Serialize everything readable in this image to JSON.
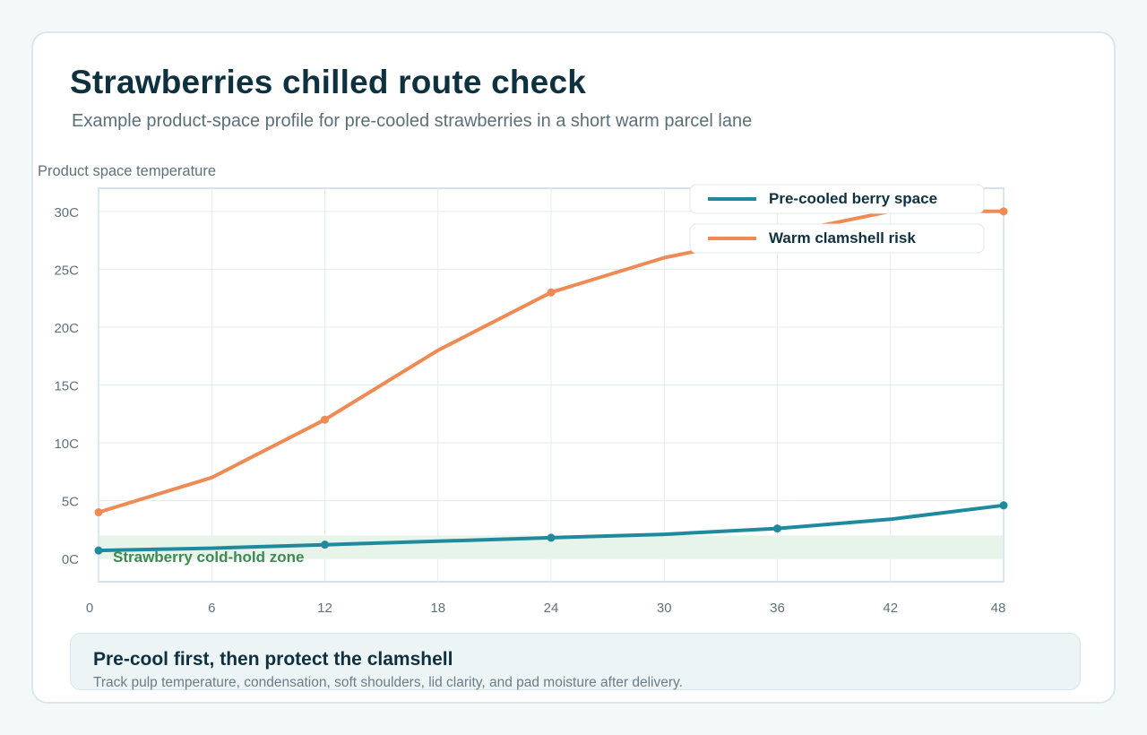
{
  "header": {
    "title": "Strawberries chilled route check",
    "subtitle": "Example product-space profile for pre-cooled strawberries in a short warm parcel lane"
  },
  "chart_data": {
    "type": "line",
    "ylabel": "Product space temperature",
    "xlabel": "",
    "x_ticks": [
      "0",
      "6",
      "12",
      "18",
      "24",
      "30",
      "36",
      "42",
      "48"
    ],
    "y_ticks": [
      "0C",
      "5C",
      "10C",
      "15C",
      "20C",
      "25C",
      "30C"
    ],
    "xlim": [
      0,
      48
    ],
    "ylim": [
      -2,
      32
    ],
    "grid": true,
    "legend_position": "top-right",
    "band": {
      "label": "Strawberry cold-hold zone",
      "y_from": 0,
      "y_to": 2
    },
    "series": [
      {
        "name": "Pre-cooled berry space",
        "color": "#1f8a9e",
        "x": [
          0,
          6,
          12,
          18,
          24,
          30,
          36,
          42,
          48
        ],
        "values": [
          0.7,
          0.9,
          1.2,
          1.5,
          1.8,
          2.1,
          2.6,
          3.4,
          4.6
        ],
        "marker_x": [
          0,
          12,
          24,
          36,
          48
        ]
      },
      {
        "name": "Warm clamshell risk",
        "color": "#ee8b55",
        "x": [
          0,
          6,
          12,
          18,
          24,
          30,
          36,
          42,
          48
        ],
        "values": [
          4,
          7,
          12,
          18,
          23,
          26,
          28,
          30,
          30
        ],
        "marker_x": [
          0,
          12,
          24,
          48
        ]
      }
    ]
  },
  "note": {
    "title": "Pre-cool first, then protect the clamshell",
    "text": "Track pulp temperature, condensation, soft shoulders, lid clarity, and pad moisture after delivery."
  }
}
